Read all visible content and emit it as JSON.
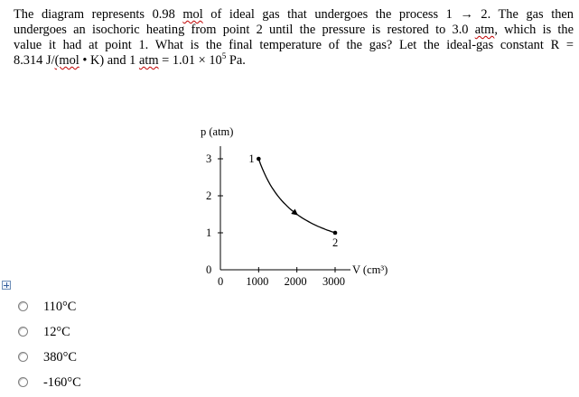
{
  "question": {
    "line1": {
      "a": "The diagram represents 0.98 ",
      "mol": "mol",
      "b": " of ideal gas that undergoes the process 1 → 2. The gas then"
    },
    "line2": {
      "a": "undergoes an isochoric heating from point 2 until the pressure is restored to 3.0 ",
      "atm": "atm",
      "b": ", which is the"
    },
    "line3": "value it had at point 1. What is the final temperature of the gas? Let the ideal-gas constant R =",
    "line4": {
      "a": "8.314 J/",
      "mol": "(mol",
      "b": " • K) and 1 ",
      "atm": "atm",
      "c": " = 1.01 × 10",
      "exp": "5",
      "d": " Pa."
    }
  },
  "chart_data": {
    "type": "line",
    "ylabel": "p (atm)",
    "xlabel": "V (cm³)",
    "xlim": [
      0,
      3000
    ],
    "ylim": [
      0,
      3
    ],
    "x_ticks": [
      "0",
      "1000",
      "2000",
      "3000"
    ],
    "y_ticks": [
      "0",
      "1",
      "2",
      "3"
    ],
    "series": [
      {
        "x": [
          1000,
          3000
        ],
        "y": [
          3,
          1
        ]
      }
    ],
    "points": [
      {
        "label": "1",
        "x": 1000,
        "y": 3
      },
      {
        "label": "2",
        "x": 3000,
        "y": 1
      }
    ],
    "arrow": "direction from 1 to 2",
    "grid": false
  },
  "answer_options": [
    {
      "label": "110°C"
    },
    {
      "label": "12°C"
    },
    {
      "label": "380°C"
    },
    {
      "label": "-160°C"
    }
  ],
  "icons": {
    "expand": "expand-plus-icon",
    "radio": "radio-button-icon"
  },
  "colors": {
    "spellcheck_underline": "#c00000",
    "expand_icon": "#355f9c"
  }
}
